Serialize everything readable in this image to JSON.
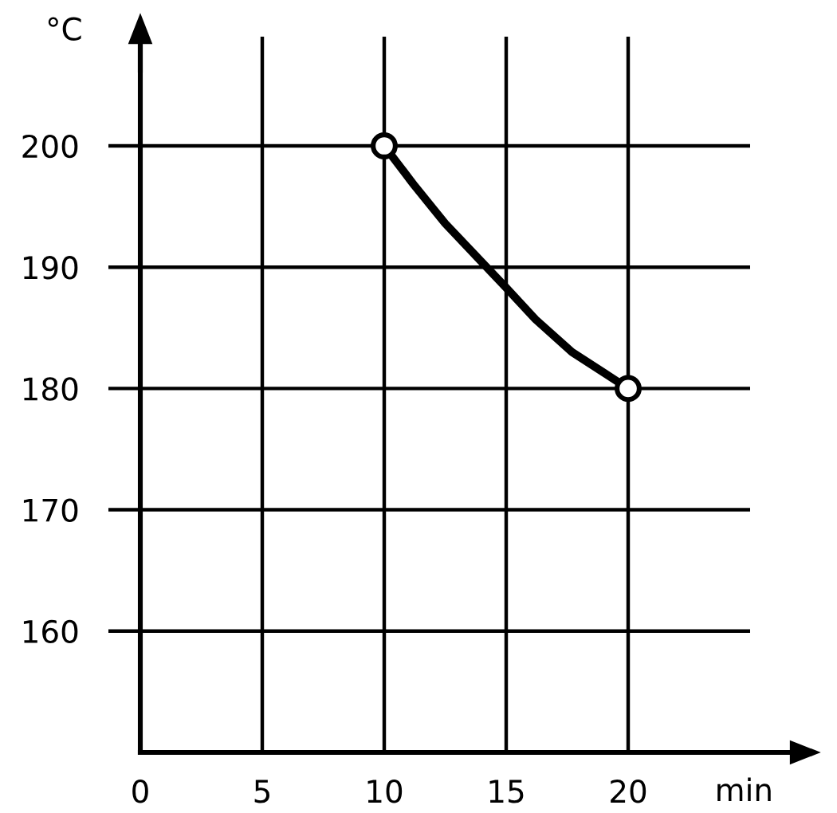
{
  "chart_data": {
    "type": "line",
    "xlabel": "min",
    "ylabel": "°C",
    "xlim": [
      0,
      25
    ],
    "ylim": [
      150,
      209
    ],
    "xticks": [
      0,
      5,
      10,
      15,
      20
    ],
    "yticks": [
      160,
      170,
      180,
      190,
      200
    ],
    "grid": true,
    "series": [
      {
        "color": "#000000",
        "marker": "none",
        "line_style": "solid",
        "x": [
          10,
          11.25,
          12.5,
          14.2,
          15,
          16.2,
          17.7,
          20
        ],
        "values": [
          200,
          196.7,
          193.6,
          190,
          188.3,
          185.7,
          183,
          180
        ]
      },
      {
        "type": "scatter",
        "color": "#000000",
        "marker": "circle",
        "x": [
          10,
          20
        ],
        "values": [
          200,
          180
        ]
      }
    ]
  }
}
